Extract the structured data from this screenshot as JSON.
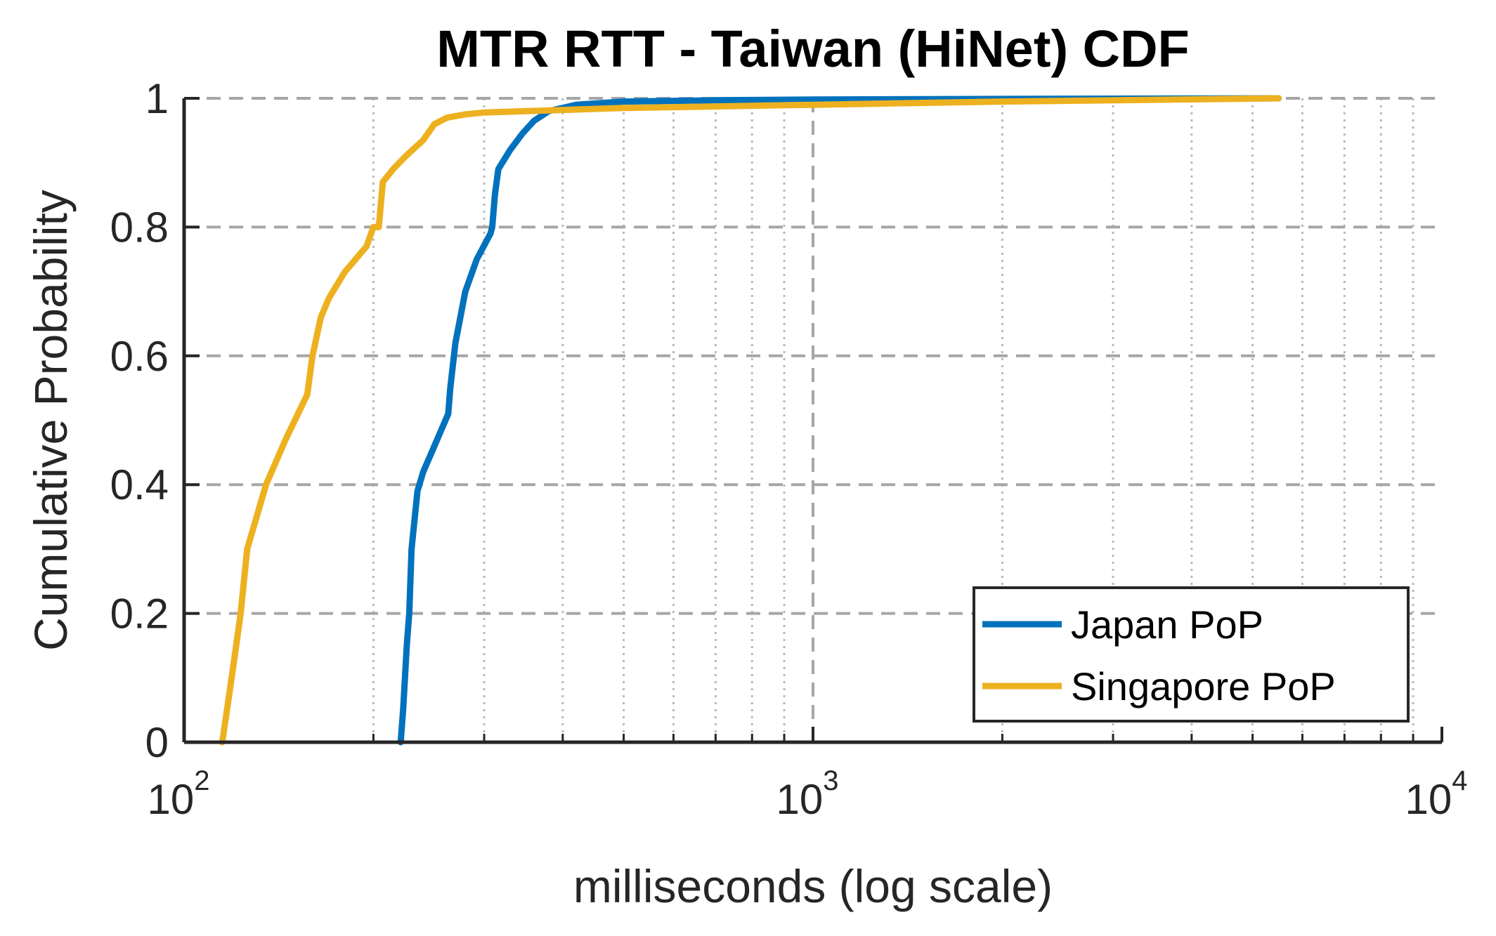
{
  "chart_data": {
    "type": "line",
    "title": "MTR RTT - Taiwan (HiNet) CDF",
    "xlabel": "milliseconds (log scale)",
    "ylabel": "Cumulative Probability",
    "xscale": "log",
    "xlim": [
      100,
      10000
    ],
    "ylim": [
      0,
      1
    ],
    "grid": true,
    "x_ticks": [
      {
        "base": "10",
        "exp": "2"
      },
      {
        "base": "10",
        "exp": "3"
      },
      {
        "base": "10",
        "exp": "4"
      }
    ],
    "y_ticks": [
      "0",
      "0.2",
      "0.4",
      "0.6",
      "0.8",
      "1"
    ],
    "legend_position": "bottom-right",
    "series": [
      {
        "name": "Japan PoP",
        "color": "#0072BD",
        "x": [
          221,
          223,
          226,
          228,
          230,
          235,
          240,
          250,
          263,
          265,
          270,
          280,
          292,
          307,
          309,
          312,
          316,
          330,
          345,
          360,
          380,
          420,
          500,
          700,
          1000,
          2000,
          5500
        ],
        "y": [
          0.0,
          0.05,
          0.15,
          0.2,
          0.3,
          0.39,
          0.42,
          0.46,
          0.51,
          0.55,
          0.62,
          0.7,
          0.75,
          0.79,
          0.8,
          0.85,
          0.89,
          0.92,
          0.945,
          0.965,
          0.98,
          0.99,
          0.995,
          0.997,
          0.998,
          0.999,
          1.0
        ]
      },
      {
        "name": "Singapore PoP",
        "color": "#EDB120",
        "x": [
          115,
          117,
          119,
          121,
          123,
          126,
          135,
          145,
          157,
          160,
          165,
          170,
          180,
          195,
          200,
          204,
          207,
          215,
          225,
          240,
          250,
          262,
          280,
          300,
          350,
          500,
          1000,
          2000,
          5500
        ],
        "y": [
          0.0,
          0.05,
          0.1,
          0.15,
          0.2,
          0.3,
          0.4,
          0.47,
          0.54,
          0.6,
          0.66,
          0.69,
          0.73,
          0.77,
          0.8,
          0.8,
          0.87,
          0.89,
          0.91,
          0.935,
          0.96,
          0.97,
          0.975,
          0.978,
          0.98,
          0.985,
          0.99,
          0.995,
          1.0
        ]
      }
    ]
  }
}
